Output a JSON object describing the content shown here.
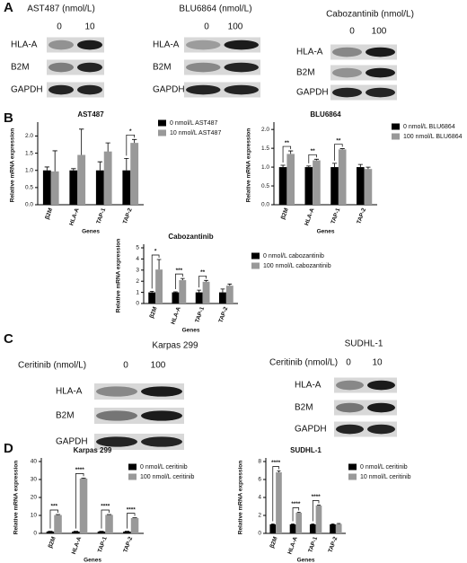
{
  "panel_labels": [
    "A",
    "B",
    "C",
    "D"
  ],
  "blots": [
    {
      "title": "AST487 (nmol/L)",
      "lanes": [
        "0",
        "10"
      ],
      "rows": [
        "HLA-A",
        "B2M",
        "GAPDH"
      ]
    },
    {
      "title": "BLU6864 (nmol/L)",
      "lanes": [
        "0",
        "100"
      ],
      "rows": [
        "HLA-A",
        "B2M",
        "GAPDH"
      ]
    },
    {
      "title": "Cabozantinib (nmol/L)",
      "lanes": [
        "0",
        "100"
      ],
      "rows": [
        "HLA-A",
        "B2M",
        "GAPDH"
      ]
    },
    {
      "title": "Karpas 299",
      "treatment": "Ceritinib (nmol/L)",
      "lanes": [
        "0",
        "100"
      ],
      "rows": [
        "HLA-A",
        "B2M",
        "GAPDH"
      ]
    },
    {
      "title": "SUDHL-1",
      "treatment": "Ceritinib (nmol/L)",
      "lanes": [
        "0",
        "10"
      ],
      "rows": [
        "HLA-A",
        "B2M",
        "GAPDH"
      ]
    }
  ],
  "chart_data": [
    {
      "type": "bar",
      "title": "AST487",
      "x_label": "Genes",
      "y_label": "Relative mRNA expression",
      "categories": [
        "β2M",
        "HLA-A",
        "TAP-1",
        "TAP-2"
      ],
      "series": [
        {
          "name": "0 nmol/L AST487",
          "color": "#000000",
          "values": [
            1.0,
            1.0,
            1.0,
            1.0
          ],
          "errors": [
            0.1,
            0.05,
            0.25,
            0.35
          ]
        },
        {
          "name": "10 nmol/L AST487",
          "color": "#999999",
          "values": [
            0.97,
            1.45,
            1.55,
            1.8
          ],
          "errors": [
            0.6,
            0.75,
            0.25,
            0.1
          ]
        }
      ],
      "significance": [
        null,
        null,
        null,
        "*"
      ],
      "ylim": [
        0,
        2.3
      ],
      "yticks": [
        {
          "value": 0,
          "label": "0.0"
        },
        0.5,
        {
          "value": 1,
          "label": "1.0"
        },
        1.5,
        {
          "value": 2,
          "label": "2.0"
        }
      ]
    },
    {
      "type": "bar",
      "title": "BLU6864",
      "x_label": "Genes",
      "y_label": "Relative mRNA expression",
      "categories": [
        "β2M",
        "HLA-A",
        "TAP-1",
        "TAP-2"
      ],
      "series": [
        {
          "name": "0 nmol/L BLU6864",
          "color": "#000000",
          "values": [
            1.0,
            1.0,
            1.0,
            1.0
          ],
          "errors": [
            0.05,
            0.03,
            0.1,
            0.07
          ]
        },
        {
          "name": "100 nmol/L BLU6864",
          "color": "#999999",
          "values": [
            1.35,
            1.18,
            1.47,
            0.95
          ],
          "errors": [
            0.08,
            0.03,
            0.02,
            0.05
          ]
        }
      ],
      "significance": [
        "**",
        "**",
        "**",
        null
      ],
      "ylim": [
        0,
        2.1
      ],
      "yticks": [
        {
          "value": 0,
          "label": "0.0"
        },
        0.5,
        {
          "value": 1,
          "label": "1.0"
        },
        1.5,
        {
          "value": 2,
          "label": "2.0"
        }
      ]
    },
    {
      "type": "bar",
      "title": "Cabozantinib",
      "x_label": "Genes",
      "y_label": "Relative mRNA expression",
      "categories": [
        "β2M",
        "HLA-A",
        "TAP-1",
        "TAP-2"
      ],
      "series": [
        {
          "name": "0 nmol/L cabozantinib",
          "color": "#000000",
          "values": [
            1.0,
            1.0,
            1.0,
            1.0
          ],
          "errors": [
            0.1,
            0.05,
            0.2,
            0.3
          ]
        },
        {
          "name": "100 nmol/L cabozantinib",
          "color": "#999999",
          "values": [
            3.05,
            2.1,
            1.95,
            1.6
          ],
          "errors": [
            0.9,
            0.15,
            0.12,
            0.15
          ]
        }
      ],
      "significance": [
        "*",
        "***",
        "**",
        null
      ],
      "ylim": [
        0,
        5
      ],
      "yticks": [
        0,
        1,
        2,
        3,
        4,
        5
      ]
    },
    {
      "type": "bar",
      "title": "Karpas 299",
      "x_label": "Genes",
      "y_label": "Relative mRNA expression",
      "categories": [
        "β2M",
        "HLA-A",
        "TAP-1",
        "TAP-2"
      ],
      "series": [
        {
          "name": "0 nmol/L ceritinib",
          "color": "#000000",
          "values": [
            1.0,
            1.0,
            1.0,
            1.0
          ],
          "errors": [
            0.2,
            0.2,
            0.2,
            0.2
          ]
        },
        {
          "name": "100 nmol/L ceritinib",
          "color": "#999999",
          "values": [
            10.2,
            30.5,
            10.3,
            8.5
          ],
          "errors": [
            0.3,
            0.3,
            0.2,
            0.2
          ]
        }
      ],
      "significance": [
        "***",
        "****",
        "****",
        "****"
      ],
      "ylim": [
        0,
        40
      ],
      "yticks": [
        0,
        10,
        20,
        30,
        40
      ]
    },
    {
      "type": "bar",
      "title": "SUDHL-1",
      "x_label": "Genes",
      "y_label": "Relative mRNA expression",
      "categories": [
        "β2M",
        "HLA-A",
        "TAP-1",
        "TAP-2"
      ],
      "series": [
        {
          "name": "0 nmol/L ceritinib",
          "color": "#000000",
          "values": [
            1.0,
            1.0,
            1.0,
            1.0
          ],
          "errors": [
            0.05,
            0.05,
            0.05,
            0.05
          ]
        },
        {
          "name": "10 nmol/L ceritinib",
          "color": "#999999",
          "values": [
            6.8,
            2.3,
            3.1,
            1.05
          ],
          "errors": [
            0.15,
            0.05,
            0.05,
            0.05
          ]
        }
      ],
      "significance": [
        "****",
        "****",
        "****",
        null
      ],
      "ylim": [
        0,
        8
      ],
      "yticks": [
        0,
        2,
        4,
        6,
        8
      ]
    }
  ]
}
